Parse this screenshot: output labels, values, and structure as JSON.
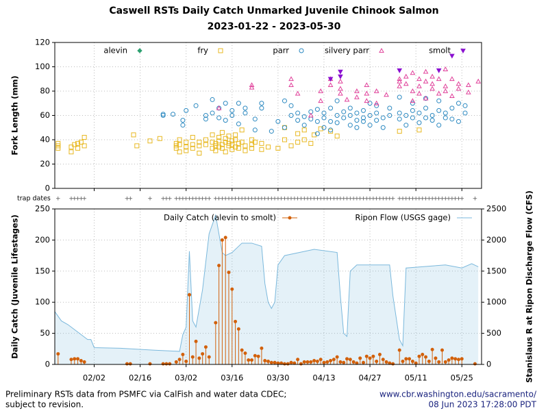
{
  "title": "Caswell RSTs Daily Catch Unmarked Juvenile Chinook Salmon",
  "subtitle": "2023-01-22 - 2023-05-30",
  "trap_dates_label": "trap dates",
  "footer": {
    "left": [
      "Preliminary RSTs data from PSMFC via CalFish and water data CDEC;",
      "subject to revision."
    ],
    "right": [
      "www.cbr.washington.edu/sacramento/",
      "08 Jun 2023 17:28:00 PDT"
    ]
  },
  "chart_data": [
    {
      "type": "scatter",
      "ylabel": "Fork Length (mm)",
      "grid": true,
      "legend": "top",
      "xlim": [
        "2023-01-21",
        "2023-05-31"
      ],
      "xticks": [
        "2023-02-02",
        "2023-02-16",
        "2023-03-02",
        "2023-03-16",
        "2023-03-30",
        "2023-04-13",
        "2023-04-27",
        "2023-05-11",
        "2023-05-25"
      ],
      "ylim": [
        0,
        120
      ],
      "yticks": [
        0,
        20,
        40,
        60,
        80,
        100,
        120
      ],
      "series": [
        {
          "name": "alevin",
          "color": "#2ca070",
          "marker": "diamond",
          "x": [],
          "values": []
        },
        {
          "name": "fry",
          "color": "#e8b820",
          "marker": "square",
          "x": [
            "2023-01-22",
            "2023-01-22",
            "2023-01-22",
            "2023-01-26",
            "2023-01-26",
            "2023-01-27",
            "2023-01-28",
            "2023-01-28",
            "2023-01-29",
            "2023-01-30",
            "2023-01-30",
            "2023-02-14",
            "2023-02-15",
            "2023-02-19",
            "2023-02-22",
            "2023-02-27",
            "2023-02-27",
            "2023-02-27",
            "2023-02-28",
            "2023-02-28",
            "2023-02-28",
            "2023-03-02",
            "2023-03-02",
            "2023-03-02",
            "2023-03-04",
            "2023-03-04",
            "2023-03-04",
            "2023-03-06",
            "2023-03-06",
            "2023-03-06",
            "2023-03-08",
            "2023-03-08",
            "2023-03-10",
            "2023-03-10",
            "2023-03-10",
            "2023-03-11",
            "2023-03-11",
            "2023-03-11",
            "2023-03-12",
            "2023-03-12",
            "2023-03-12",
            "2023-03-13",
            "2023-03-13",
            "2023-03-13",
            "2023-03-14",
            "2023-03-14",
            "2023-03-14",
            "2023-03-15",
            "2023-03-15",
            "2023-03-15",
            "2023-03-16",
            "2023-03-16",
            "2023-03-16",
            "2023-03-17",
            "2023-03-17",
            "2023-03-17",
            "2023-03-18",
            "2023-03-18",
            "2023-03-19",
            "2023-03-19",
            "2023-03-20",
            "2023-03-20",
            "2023-03-22",
            "2023-03-22",
            "2023-03-22",
            "2023-03-23",
            "2023-03-25",
            "2023-03-25",
            "2023-03-27",
            "2023-03-30",
            "2023-04-01",
            "2023-04-01",
            "2023-04-03",
            "2023-04-05",
            "2023-04-05",
            "2023-04-07",
            "2023-04-07",
            "2023-04-09",
            "2023-04-10",
            "2023-04-12",
            "2023-04-15",
            "2023-04-17",
            "2023-05-06",
            "2023-05-12"
          ],
          "values": [
            33,
            35,
            37,
            30,
            34,
            36,
            37,
            33,
            38,
            35,
            42,
            44,
            35,
            39,
            41,
            37,
            33,
            35,
            36,
            40,
            30,
            38,
            34,
            31,
            36,
            42,
            33,
            35,
            38,
            29,
            40,
            36,
            33,
            38,
            44,
            37,
            31,
            35,
            39,
            42,
            34,
            36,
            33,
            46,
            38,
            30,
            41,
            35,
            37,
            43,
            32,
            39,
            36,
            40,
            44,
            34,
            37,
            33,
            38,
            48,
            35,
            31,
            36,
            40,
            33,
            38,
            37,
            32,
            34,
            33,
            50,
            40,
            35,
            38,
            45,
            48,
            40,
            37,
            44,
            49,
            47,
            43,
            47,
            48
          ]
        },
        {
          "name": "parr",
          "color": "#2a88c0",
          "marker": "circle",
          "x": [
            "2023-02-23",
            "2023-02-23",
            "2023-02-26",
            "2023-03-01",
            "2023-03-01",
            "2023-03-02",
            "2023-03-05",
            "2023-03-08",
            "2023-03-08",
            "2023-03-10",
            "2023-03-10",
            "2023-03-12",
            "2023-03-12",
            "2023-03-14",
            "2023-03-14",
            "2023-03-16",
            "2023-03-16",
            "2023-03-18",
            "2023-03-18",
            "2023-03-20",
            "2023-03-20",
            "2023-03-23",
            "2023-03-23",
            "2023-03-25",
            "2023-03-25",
            "2023-03-28",
            "2023-03-30",
            "2023-04-01",
            "2023-04-01",
            "2023-04-03",
            "2023-04-03",
            "2023-04-05",
            "2023-04-05",
            "2023-04-07",
            "2023-04-07",
            "2023-04-09",
            "2023-04-09",
            "2023-04-11",
            "2023-04-11",
            "2023-04-11",
            "2023-04-13",
            "2023-04-13",
            "2023-04-13",
            "2023-04-15",
            "2023-04-15",
            "2023-04-15",
            "2023-04-17",
            "2023-04-17",
            "2023-04-17",
            "2023-04-19",
            "2023-04-19",
            "2023-04-21",
            "2023-04-21",
            "2023-04-21",
            "2023-04-23",
            "2023-04-23",
            "2023-04-23",
            "2023-04-25",
            "2023-04-25",
            "2023-04-25",
            "2023-04-27",
            "2023-04-27",
            "2023-04-27",
            "2023-04-29",
            "2023-04-29",
            "2023-04-29",
            "2023-05-01",
            "2023-05-01",
            "2023-05-03",
            "2023-05-03",
            "2023-05-06",
            "2023-05-06",
            "2023-05-06",
            "2023-05-08",
            "2023-05-08",
            "2023-05-10",
            "2023-05-10",
            "2023-05-10",
            "2023-05-12",
            "2023-05-12",
            "2023-05-14",
            "2023-05-14",
            "2023-05-14",
            "2023-05-16",
            "2023-05-16",
            "2023-05-18",
            "2023-05-18",
            "2023-05-18",
            "2023-05-20",
            "2023-05-20",
            "2023-05-22",
            "2023-05-22",
            "2023-05-24",
            "2023-05-24",
            "2023-05-26",
            "2023-05-26"
          ],
          "values": [
            61,
            60,
            61,
            56,
            52,
            64,
            68,
            60,
            57,
            73,
            62,
            66,
            58,
            56,
            70,
            64,
            60,
            70,
            53,
            66,
            62,
            57,
            48,
            66,
            70,
            47,
            55,
            72,
            50,
            68,
            60,
            56,
            62,
            59,
            52,
            57,
            63,
            55,
            65,
            45,
            50,
            58,
            62,
            66,
            48,
            55,
            60,
            54,
            72,
            58,
            63,
            52,
            60,
            66,
            56,
            50,
            62,
            64,
            55,
            58,
            70,
            52,
            60,
            56,
            62,
            68,
            58,
            50,
            60,
            66,
            57,
            75,
            62,
            52,
            60,
            64,
            58,
            70,
            54,
            62,
            66,
            58,
            74,
            60,
            56,
            64,
            72,
            52,
            58,
            62,
            57,
            66,
            55,
            70,
            62,
            68
          ]
        },
        {
          "name": "silvery parr",
          "color": "#e0409a",
          "marker": "triangle-up",
          "x": [
            "2023-03-12",
            "2023-03-22",
            "2023-03-22",
            "2023-04-03",
            "2023-04-03",
            "2023-04-05",
            "2023-04-09",
            "2023-04-12",
            "2023-04-12",
            "2023-04-15",
            "2023-04-15",
            "2023-04-18",
            "2023-04-18",
            "2023-04-18",
            "2023-04-20",
            "2023-04-23",
            "2023-04-23",
            "2023-04-26",
            "2023-04-26",
            "2023-04-26",
            "2023-04-29",
            "2023-04-29",
            "2023-05-02",
            "2023-05-06",
            "2023-05-06",
            "2023-05-06",
            "2023-05-08",
            "2023-05-08",
            "2023-05-10",
            "2023-05-10",
            "2023-05-10",
            "2023-05-12",
            "2023-05-12",
            "2023-05-12",
            "2023-05-14",
            "2023-05-14",
            "2023-05-14",
            "2023-05-16",
            "2023-05-16",
            "2023-05-16",
            "2023-05-18",
            "2023-05-18",
            "2023-05-20",
            "2023-05-20",
            "2023-05-20",
            "2023-05-22",
            "2023-05-22",
            "2023-05-24",
            "2023-05-24",
            "2023-05-27",
            "2023-05-27",
            "2023-05-30"
          ],
          "values": [
            66,
            83,
            85,
            90,
            85,
            78,
            60,
            72,
            80,
            85,
            90,
            82,
            78,
            88,
            73,
            80,
            75,
            85,
            72,
            78,
            80,
            70,
            77,
            88,
            90,
            84,
            92,
            86,
            80,
            95,
            72,
            84,
            90,
            78,
            88,
            74,
            96,
            82,
            92,
            86,
            78,
            90,
            84,
            98,
            80,
            76,
            90,
            86,
            82,
            85,
            79,
            88
          ]
        },
        {
          "name": "smolt",
          "color": "#8a10d0",
          "marker": "triangle-down",
          "x": [
            "2023-04-15",
            "2023-04-18",
            "2023-04-18",
            "2023-05-06",
            "2023-05-18",
            "2023-05-22"
          ],
          "values": [
            90,
            96,
            92,
            97,
            97,
            109
          ]
        }
      ]
    },
    {
      "type": "combo",
      "ylabel": "Daily Catch (Juvenile Lifestages)",
      "y2label": "Stanislaus R at Ripon Discharge Flow (CFS)",
      "grid": true,
      "legend": "top",
      "xlim": [
        "2023-01-21",
        "2023-05-31"
      ],
      "xticks": [
        {
          "value": "2023-02-02",
          "label": "02/02"
        },
        {
          "value": "2023-02-16",
          "label": "02/16"
        },
        {
          "value": "2023-03-02",
          "label": "03/02"
        },
        {
          "value": "2023-03-16",
          "label": "03/16"
        },
        {
          "value": "2023-03-30",
          "label": "03/30"
        },
        {
          "value": "2023-04-13",
          "label": "04/13"
        },
        {
          "value": "2023-04-27",
          "label": "04/27"
        },
        {
          "value": "2023-05-11",
          "label": "05/11"
        },
        {
          "value": "2023-05-25",
          "label": "05/25"
        }
      ],
      "ylim": [
        0,
        250
      ],
      "yticks": [
        0,
        50,
        100,
        150,
        200,
        250
      ],
      "y2lim": [
        0,
        2500
      ],
      "y2ticks": [
        0,
        500,
        1000,
        1500,
        2000,
        2500
      ],
      "series": [
        {
          "name": "Daily Catch (alevin to smolt)",
          "type": "stem",
          "color": "#d2600a",
          "x": [
            "2023-01-22",
            "2023-01-26",
            "2023-01-27",
            "2023-01-28",
            "2023-01-29",
            "2023-01-30",
            "2023-02-12",
            "2023-02-13",
            "2023-02-19",
            "2023-02-23",
            "2023-02-24",
            "2023-02-25",
            "2023-02-27",
            "2023-02-28",
            "2023-03-01",
            "2023-03-02",
            "2023-03-03",
            "2023-03-04",
            "2023-03-05",
            "2023-03-06",
            "2023-03-07",
            "2023-03-08",
            "2023-03-09",
            "2023-03-11",
            "2023-03-12",
            "2023-03-13",
            "2023-03-14",
            "2023-03-15",
            "2023-03-16",
            "2023-03-17",
            "2023-03-18",
            "2023-03-19",
            "2023-03-20",
            "2023-03-21",
            "2023-03-22",
            "2023-03-23",
            "2023-03-24",
            "2023-03-25",
            "2023-03-26",
            "2023-03-27",
            "2023-03-28",
            "2023-03-29",
            "2023-03-30",
            "2023-03-31",
            "2023-04-01",
            "2023-04-02",
            "2023-04-03",
            "2023-04-04",
            "2023-04-05",
            "2023-04-06",
            "2023-04-07",
            "2023-04-08",
            "2023-04-09",
            "2023-04-10",
            "2023-04-11",
            "2023-04-12",
            "2023-04-13",
            "2023-04-14",
            "2023-04-15",
            "2023-04-16",
            "2023-04-17",
            "2023-04-18",
            "2023-04-19",
            "2023-04-20",
            "2023-04-21",
            "2023-04-22",
            "2023-04-23",
            "2023-04-24",
            "2023-04-25",
            "2023-04-26",
            "2023-04-27",
            "2023-04-28",
            "2023-04-29",
            "2023-04-30",
            "2023-05-01",
            "2023-05-02",
            "2023-05-03",
            "2023-05-04",
            "2023-05-06",
            "2023-05-07",
            "2023-05-08",
            "2023-05-09",
            "2023-05-10",
            "2023-05-11",
            "2023-05-12",
            "2023-05-13",
            "2023-05-14",
            "2023-05-15",
            "2023-05-16",
            "2023-05-17",
            "2023-05-18",
            "2023-05-19",
            "2023-05-20",
            "2023-05-21",
            "2023-05-22",
            "2023-05-23",
            "2023-05-24",
            "2023-05-25",
            "2023-05-29"
          ],
          "values": [
            17,
            8,
            9,
            9,
            6,
            4,
            1,
            1,
            1,
            1,
            1,
            1,
            4,
            8,
            16,
            5,
            112,
            12,
            37,
            10,
            17,
            28,
            12,
            67,
            159,
            200,
            204,
            148,
            121,
            69,
            57,
            23,
            18,
            7,
            7,
            14,
            13,
            26,
            6,
            5,
            3,
            3,
            2,
            2,
            1,
            1,
            3,
            2,
            8,
            1,
            4,
            4,
            4,
            6,
            5,
            8,
            3,
            4,
            6,
            8,
            12,
            4,
            3,
            9,
            8,
            4,
            2,
            10,
            3,
            13,
            10,
            13,
            5,
            16,
            8,
            4,
            2,
            1,
            23,
            5,
            9,
            9,
            5,
            2,
            13,
            16,
            12,
            5,
            24,
            10,
            4,
            23,
            4,
            7,
            10,
            9,
            8,
            9,
            1
          ]
        },
        {
          "name": "Ripon Flow (USGS gage)",
          "type": "area",
          "axis": "y2",
          "color": "#7ab8dc",
          "x": [
            "2023-01-21",
            "2023-01-23",
            "2023-01-25",
            "2023-01-28",
            "2023-01-31",
            "2023-02-01",
            "2023-02-02",
            "2023-02-10",
            "2023-02-20",
            "2023-02-28",
            "2023-03-01",
            "2023-03-02",
            "2023-03-03",
            "2023-03-04",
            "2023-03-05",
            "2023-03-07",
            "2023-03-09",
            "2023-03-11",
            "2023-03-13",
            "2023-03-14",
            "2023-03-16",
            "2023-03-19",
            "2023-03-22",
            "2023-03-25",
            "2023-03-26",
            "2023-03-27",
            "2023-03-28",
            "2023-03-29",
            "2023-03-30",
            "2023-04-01",
            "2023-04-10",
            "2023-04-17",
            "2023-04-18",
            "2023-04-19",
            "2023-04-20",
            "2023-04-21",
            "2023-04-23",
            "2023-05-03",
            "2023-05-04",
            "2023-05-06",
            "2023-05-07",
            "2023-05-08",
            "2023-05-20",
            "2023-05-25",
            "2023-05-28",
            "2023-05-30"
          ],
          "values": [
            850,
            700,
            640,
            520,
            400,
            400,
            270,
            260,
            230,
            210,
            480,
            600,
            1820,
            700,
            600,
            1200,
            2100,
            2400,
            1800,
            1750,
            1800,
            1950,
            1950,
            1900,
            1300,
            1000,
            900,
            1000,
            1600,
            1750,
            1850,
            1800,
            1100,
            500,
            450,
            1500,
            1600,
            1600,
            1100,
            400,
            300,
            1550,
            1600,
            1550,
            1620,
            1570
          ]
        }
      ]
    }
  ]
}
